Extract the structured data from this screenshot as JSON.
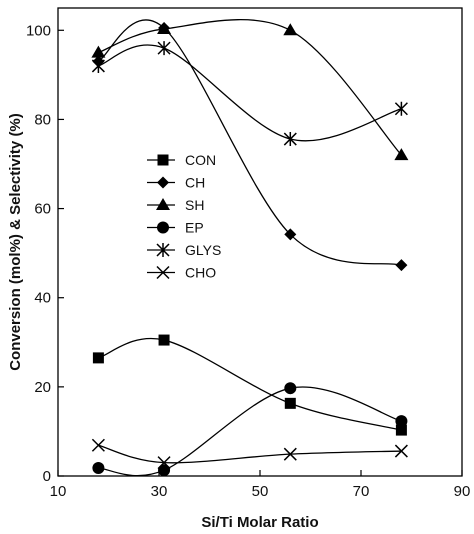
{
  "chart_data": {
    "type": "line",
    "title": "",
    "xlabel": "Si/Ti Molar Ratio",
    "ylabel": "Conversion (mol%) & Selectivity (%)",
    "xlim": [
      10,
      90
    ],
    "ylim": [
      0,
      105
    ],
    "x_ticks": [
      10,
      30,
      50,
      70,
      90
    ],
    "x_tick_labels": [
      "10",
      "30",
      "50",
      "70",
      "90"
    ],
    "y_ticks": [
      0,
      20,
      40,
      60,
      80,
      100
    ],
    "y_tick_labels": [
      "0",
      "20",
      "40",
      "60",
      "80",
      "100"
    ],
    "grid": false,
    "legend_position": "center-left",
    "series": [
      {
        "name": "CON",
        "marker": "square",
        "x": [
          18,
          31,
          56,
          78
        ],
        "values": [
          26.5,
          30.5,
          16.3,
          10.3
        ]
      },
      {
        "name": "CH",
        "marker": "diamond",
        "x": [
          18,
          31,
          56,
          78
        ],
        "values": [
          93,
          100.5,
          54.2,
          47.3
        ]
      },
      {
        "name": "SH",
        "marker": "triangle",
        "x": [
          18,
          31,
          56,
          78
        ],
        "values": [
          95,
          100.3,
          100,
          72
        ]
      },
      {
        "name": "EP",
        "marker": "circle",
        "x": [
          18,
          31,
          56,
          78
        ],
        "values": [
          1.8,
          1.3,
          19.7,
          12.3
        ]
      },
      {
        "name": "GLYS",
        "marker": "star",
        "x": [
          18,
          31,
          56,
          78
        ],
        "values": [
          92,
          96,
          75.6,
          82.4
        ]
      },
      {
        "name": "CHO",
        "marker": "x",
        "x": [
          18,
          31,
          56,
          78
        ],
        "values": [
          6.9,
          3.0,
          4.9,
          5.6
        ]
      }
    ]
  }
}
